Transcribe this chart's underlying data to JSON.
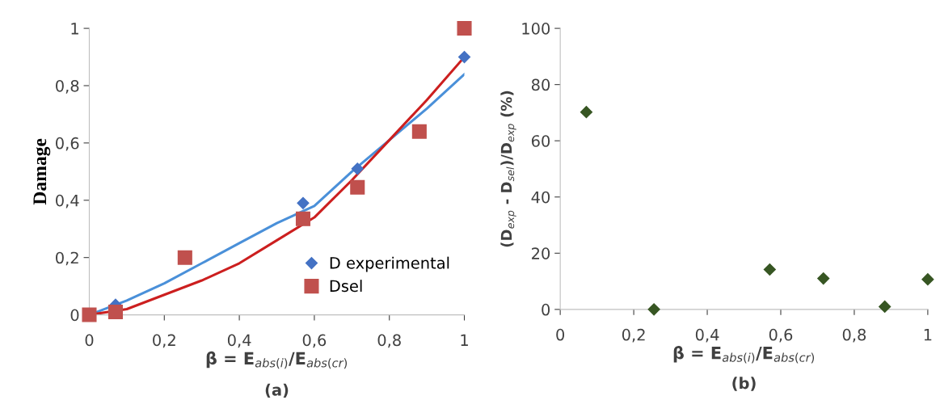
{
  "chart_data": [
    {
      "type": "scatter",
      "xlabel": "β = E$_{abs(i)}$/E$_{abs(cr)}$",
      "ylabel": "Damage",
      "annotations": [
        "(a)"
      ],
      "xlim": [
        0,
        1
      ],
      "ylim": [
        0,
        1
      ],
      "xticks": [
        0,
        {
          "value": 0.2,
          "label": "0,2"
        },
        {
          "value": 0.4,
          "label": "0,4"
        },
        {
          "value": 0.6,
          "label": "0,6"
        },
        {
          "value": 0.8,
          "label": "0,8"
        },
        1
      ],
      "yticks": [
        0,
        {
          "value": 0.2,
          "label": "0,2"
        },
        {
          "value": 0.4,
          "label": "0,4"
        },
        {
          "value": 0.6,
          "label": "0,6"
        },
        {
          "value": 0.8,
          "label": "0,8"
        },
        1
      ],
      "grid": false,
      "legend": "bottom right",
      "series": [
        {
          "type": "line",
          "color": "#4a90d9",
          "marker": "none",
          "x": [
            0,
            0.1,
            0.2,
            0.3,
            0.4,
            0.5,
            0.6,
            0.7,
            0.8,
            0.9,
            1
          ],
          "values": [
            0,
            0.05,
            0.11,
            0.18,
            0.25,
            0.32,
            0.38,
            0.5,
            0.61,
            0.72,
            0.84
          ]
        },
        {
          "type": "line",
          "color": "#cc1f1f",
          "marker": "none",
          "x": [
            0,
            0.1,
            0.2,
            0.3,
            0.4,
            0.5,
            0.6,
            0.7,
            0.8,
            0.9,
            1
          ],
          "values": [
            0,
            0.02,
            0.07,
            0.12,
            0.18,
            0.26,
            0.34,
            0.47,
            0.61,
            0.75,
            0.9
          ]
        },
        {
          "name": "D experimental",
          "color": "#4472c4",
          "marker": "diamond",
          "x": [
            0.07,
            0.57,
            0.715,
            1.0
          ],
          "values": [
            0.035,
            0.39,
            0.51,
            0.9
          ]
        },
        {
          "name": "Dsel",
          "color": "#c0504d",
          "marker": "square",
          "x": [
            0,
            0.07,
            0.255,
            0.57,
            0.715,
            0.88,
            1.0
          ],
          "values": [
            0,
            0.01,
            0.2,
            0.335,
            0.445,
            0.64,
            1.0
          ]
        }
      ]
    },
    {
      "type": "scatter",
      "xlabel": "β = E$_{abs(i)}$/E$_{abs(cr)}$",
      "ylabel": "(D$_{exp}$ - D$_{sel}$)/D$_{exp}$ (%)",
      "annotations": [
        "(b)"
      ],
      "xlim": [
        0,
        1
      ],
      "ylim": [
        0,
        100
      ],
      "xticks": [
        0,
        {
          "value": 0.2,
          "label": "0,2"
        },
        {
          "value": 0.4,
          "label": "0,4"
        },
        {
          "value": 0.6,
          "label": "0,6"
        },
        {
          "value": 0.8,
          "label": "0,8"
        },
        1
      ],
      "yticks": [
        0,
        20,
        40,
        60,
        80,
        100
      ],
      "grid": false,
      "series": [
        {
          "color": "#375623",
          "marker": "diamond",
          "x": [
            0.071,
            0.255,
            0.57,
            0.716,
            0.883,
            1.0
          ],
          "values": [
            70.2,
            0,
            14.2,
            11,
            1,
            10.7
          ]
        }
      ]
    }
  ]
}
